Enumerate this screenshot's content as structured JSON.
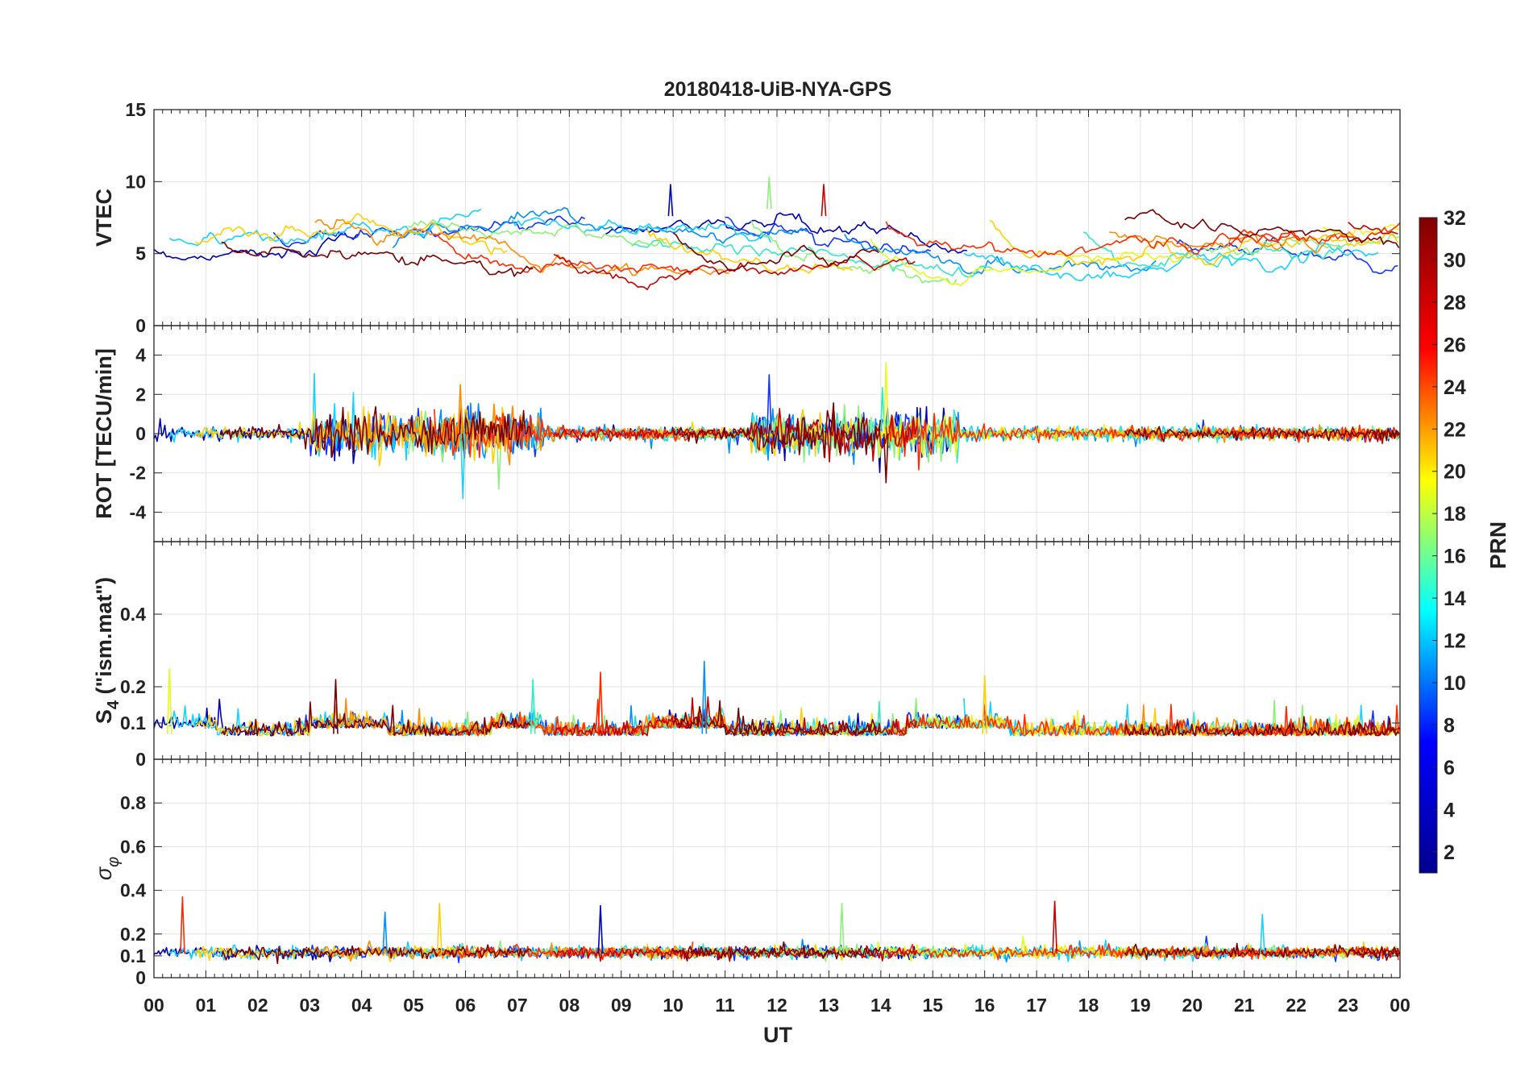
{
  "chart_data": {
    "type": "line",
    "title": "20180418-UiB-NYA-GPS",
    "xlabel": "UT",
    "x_tick_labels": [
      "00",
      "01",
      "02",
      "03",
      "04",
      "05",
      "06",
      "07",
      "08",
      "09",
      "10",
      "11",
      "12",
      "13",
      "14",
      "15",
      "16",
      "17",
      "18",
      "19",
      "20",
      "21",
      "22",
      "23",
      "00"
    ],
    "xlim_hours": [
      0,
      24
    ],
    "grid": true,
    "panels": [
      {
        "id": "vtec",
        "ylabel": "VTEC",
        "ylim": [
          0,
          15
        ],
        "ytick_values": [
          0,
          5,
          10,
          15
        ],
        "ytick_labels": [
          "0",
          "5",
          "10",
          "15"
        ],
        "series_style": "slow-varying traces, one per satellite pass (PRN)",
        "typical_range": [
          3,
          10
        ],
        "notable_peaks": [
          {
            "ut": 9.95,
            "value": 9.8
          },
          {
            "ut": 11.85,
            "value": 10.3
          },
          {
            "ut": 12.9,
            "value": 9.8
          }
        ]
      },
      {
        "id": "rot",
        "ylabel": "ROT [TECU/min]",
        "ylim": [
          -5.5,
          5.5
        ],
        "ytick_values": [
          -4,
          -2,
          0,
          2,
          4
        ],
        "ytick_labels": [
          "-4",
          "-2",
          "0",
          "2",
          "4"
        ],
        "series_style": "noisy traces centred on 0",
        "notable_peaks": [
          {
            "ut": 5.95,
            "value": -3.3
          },
          {
            "ut": 5.9,
            "value": 2.5
          },
          {
            "ut": 11.85,
            "value": 3.0
          },
          {
            "ut": 14.1,
            "value": 3.6
          },
          {
            "ut": 14.1,
            "value": -2.5
          }
        ]
      },
      {
        "id": "s4",
        "ylabel": "S4 (\"ism.mat\")",
        "ylabel_main": "S",
        "ylabel_sub": "4",
        "ylabel_rest": " (\"ism.mat\")",
        "ylim": [
          0,
          0.6
        ],
        "ytick_values": [
          0,
          0.1,
          0.2,
          0.4
        ],
        "ytick_labels": [
          "0",
          "0.1",
          "0.2",
          "0.4"
        ],
        "series_style": "scintillation index traces mostly 0.04-0.12",
        "notable_peaks": [
          {
            "ut": 0.3,
            "value": 0.25
          },
          {
            "ut": 3.5,
            "value": 0.22
          },
          {
            "ut": 7.3,
            "value": 0.22
          },
          {
            "ut": 8.6,
            "value": 0.24
          },
          {
            "ut": 10.6,
            "value": 0.27
          },
          {
            "ut": 16.0,
            "value": 0.23
          }
        ]
      },
      {
        "id": "sigma_phi",
        "ylabel": "σφ",
        "ylabel_main": "σ",
        "ylabel_sub": "φ",
        "ylim": [
          0,
          1
        ],
        "ytick_values": [
          0,
          0.1,
          0.2,
          0.4,
          0.6,
          0.8
        ],
        "ytick_labels": [
          "0",
          "0.1",
          "0.2",
          "0.4",
          "0.6",
          "0.8"
        ],
        "series_style": "phase scintillation traces around 0.1",
        "notable_peaks": [
          {
            "ut": 0.55,
            "value": 0.37
          },
          {
            "ut": 4.45,
            "value": 0.3
          },
          {
            "ut": 5.5,
            "value": 0.34
          },
          {
            "ut": 8.6,
            "value": 0.33
          },
          {
            "ut": 13.25,
            "value": 0.34
          },
          {
            "ut": 17.35,
            "value": 0.35
          },
          {
            "ut": 21.35,
            "value": 0.29
          }
        ]
      }
    ],
    "series": [
      {
        "name": "PRN 2",
        "prn": 2,
        "color": "#0000b4"
      },
      {
        "name": "PRN 5",
        "prn": 5,
        "color": "#1434ff"
      },
      {
        "name": "PRN 8",
        "prn": 8,
        "color": "#0090ff"
      },
      {
        "name": "PRN 11",
        "prn": 11,
        "color": "#16d2ff"
      },
      {
        "name": "PRN 13",
        "prn": 13,
        "color": "#34e8c4"
      },
      {
        "name": "PRN 16",
        "prn": 16,
        "color": "#8cf07a"
      },
      {
        "name": "PRN 19",
        "prn": 19,
        "color": "#e4fa1a"
      },
      {
        "name": "PRN 21",
        "prn": 21,
        "color": "#ffd000"
      },
      {
        "name": "PRN 24",
        "prn": 24,
        "color": "#ff8c00"
      },
      {
        "name": "PRN 27",
        "prn": 27,
        "color": "#ff2a00"
      },
      {
        "name": "PRN 30",
        "prn": 30,
        "color": "#c80000"
      },
      {
        "name": "PRN 32",
        "prn": 32,
        "color": "#780000"
      }
    ],
    "colorbar": {
      "label": "PRN",
      "range": [
        1,
        32
      ],
      "tick_values": [
        2,
        4,
        6,
        8,
        10,
        12,
        14,
        16,
        18,
        20,
        22,
        24,
        26,
        28,
        30,
        32
      ],
      "tick_labels": [
        "2",
        "4",
        "6",
        "8",
        "10",
        "12",
        "14",
        "16",
        "18",
        "20",
        "22",
        "24",
        "26",
        "28",
        "30",
        "32"
      ],
      "colormap": "jet",
      "jet_stops": [
        "#00008f",
        "#0000ff",
        "#00ffff",
        "#ffff00",
        "#ff0000",
        "#800000"
      ]
    }
  }
}
